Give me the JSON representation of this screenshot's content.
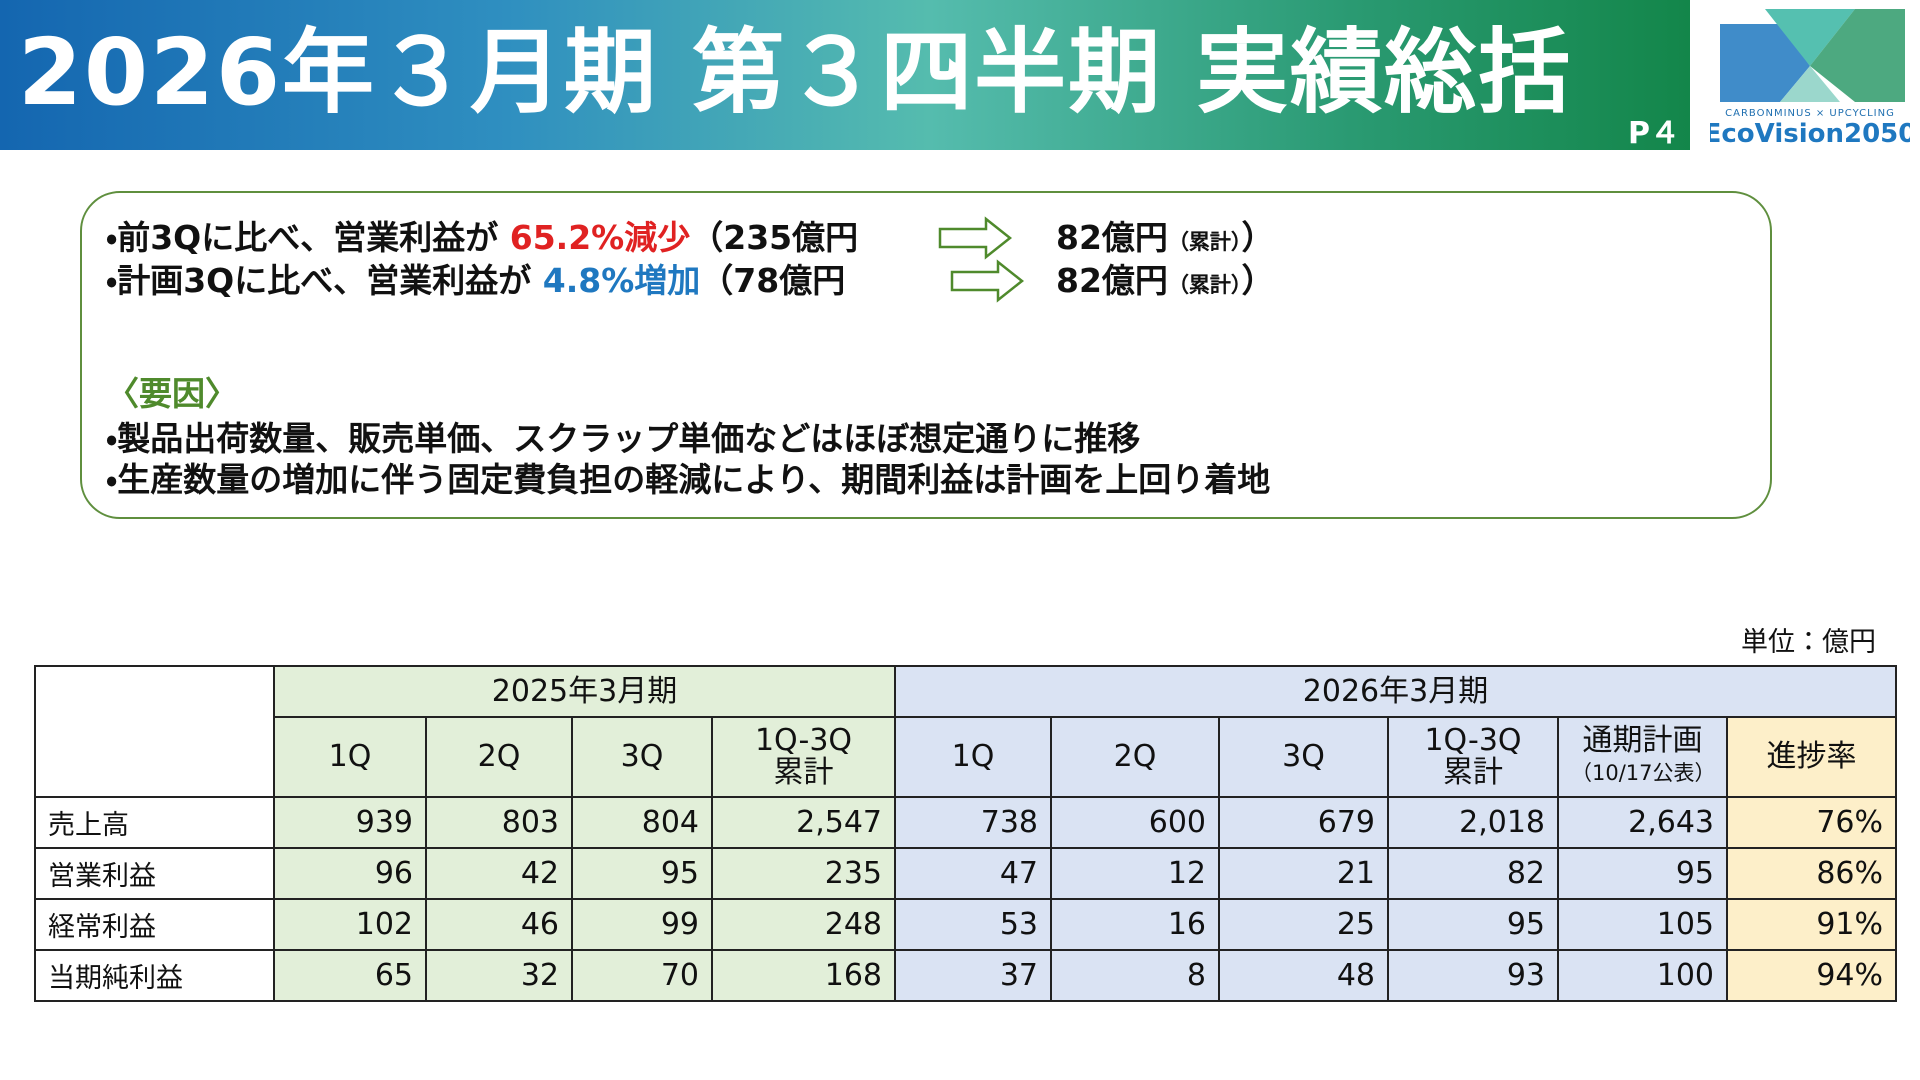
{
  "header": {
    "title": "2026年３月期 第３四半期 実績総括",
    "page": "P４",
    "logo": {
      "tagline": "CARBONMINUS × UPCYCLING",
      "name": "EcoVision2050"
    }
  },
  "summary": {
    "lines": [
      {
        "lead": "・前3Qに比べ、営業利益が",
        "change": "65.2%減少",
        "from": "（235億円",
        "to": "82億円",
        "note": "（累計）",
        "close": "）"
      },
      {
        "lead": "・計画3Qに比べ、営業利益が",
        "change": "4.8%増加",
        "from": "（78億円",
        "to": "82億円",
        "note": "（累計）",
        "close": "）"
      }
    ],
    "factors": {
      "heading": "〈要因〉",
      "items": [
        "・製品出荷数量、販売単価、スクラップ単価などはほぼ想定通りに推移",
        "・生産数量の増加に伴う固定費負担の軽減により、期間利益は計画を上回り着地"
      ]
    }
  },
  "table": {
    "unit": "単位：億円",
    "groups": [
      "2025年3月期",
      "2026年3月期"
    ],
    "columns": [
      [
        "1Q"
      ],
      [
        "2Q"
      ],
      [
        "3Q"
      ],
      [
        "1Q-3Q",
        "累計"
      ],
      [
        "1Q"
      ],
      [
        "2Q"
      ],
      [
        "3Q"
      ],
      [
        "1Q-3Q",
        "累計"
      ],
      [
        "通期計画",
        "（10/17公表）"
      ],
      [
        "進捗率"
      ]
    ],
    "rows": [
      {
        "label": "売上高",
        "values": [
          "939",
          "803",
          "804",
          "2,547",
          "738",
          "600",
          "679",
          "2,018",
          "2,643",
          "76%"
        ]
      },
      {
        "label": "営業利益",
        "values": [
          "96",
          "42",
          "95",
          "235",
          "47",
          "12",
          "21",
          "82",
          "95",
          "86%"
        ]
      },
      {
        "label": "経常利益",
        "values": [
          "102",
          "46",
          "99",
          "248",
          "53",
          "16",
          "25",
          "95",
          "105",
          "91%"
        ]
      },
      {
        "label": "当期純利益",
        "values": [
          "65",
          "32",
          "70",
          "168",
          "37",
          "8",
          "48",
          "93",
          "100",
          "94%"
        ]
      }
    ]
  }
}
